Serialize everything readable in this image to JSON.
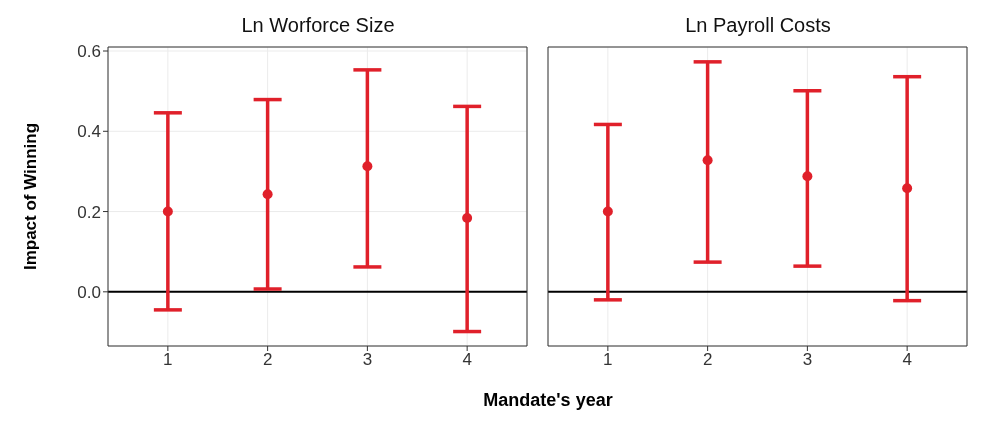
{
  "chart_data": [
    {
      "type": "scatter",
      "title": "Ln Worforce Size",
      "ylabel": "Impact of Winning",
      "xlabel": "Mandate's year",
      "x": [
        1,
        2,
        3,
        4
      ],
      "color": "#e0202a",
      "marker": "circle",
      "values": [
        0.2,
        0.243,
        0.313,
        0.184
      ],
      "errors": [
        [
          -0.045,
          0.446
        ],
        [
          0.007,
          0.479
        ],
        [
          0.062,
          0.553
        ],
        [
          -0.099,
          0.462
        ]
      ],
      "xlim": [
        0.4,
        4.6
      ],
      "xticks": [
        1,
        2,
        3,
        4
      ],
      "ylim": [
        -0.135,
        0.61
      ],
      "yticks": [
        {
          "value": 0,
          "label": "0.0"
        },
        0.2,
        0.4,
        0.6
      ],
      "grid": true,
      "ref_lines": [
        {
          "axis": "y",
          "value": 0,
          "color": "#000000"
        }
      ]
    },
    {
      "type": "scatter",
      "title": "Ln Payroll Costs",
      "x": [
        1,
        2,
        3,
        4
      ],
      "color": "#e0202a",
      "marker": "circle",
      "values": [
        0.2,
        0.328,
        0.288,
        0.258
      ],
      "errors": [
        [
          -0.02,
          0.417
        ],
        [
          0.074,
          0.573
        ],
        [
          0.064,
          0.501
        ],
        [
          -0.022,
          0.536
        ]
      ],
      "xlim": [
        0.4,
        4.6
      ],
      "xticks": [
        1,
        2,
        3,
        4
      ],
      "ylim": [
        -0.135,
        0.61
      ],
      "yticks": [
        0,
        0.2,
        0.4,
        0.6
      ],
      "grid": true,
      "tick_labels": "x",
      "ref_lines": [
        {
          "axis": "y",
          "value": 0,
          "color": "#000000"
        }
      ]
    }
  ]
}
